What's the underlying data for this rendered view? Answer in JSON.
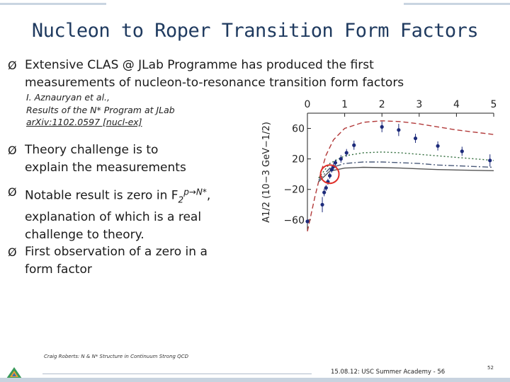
{
  "slide": {
    "title": "Nucleon to Roper Transition Form Factors",
    "bullet1": "Extensive CLAS @ JLab Programme has produced the first measurements of nucleon-to-resonance transition form factors",
    "ref_line1": "I. Aznauryan et al.,",
    "ref_line2": "Results of the N* Program at JLab",
    "ref_link": "arXiv:1102.0597 [nucl-ex]",
    "bullet2": "Theory challenge is to explain the measurements",
    "bullet3_pre": "Notable result is zero in F",
    "bullet3_sub": "2",
    "bullet3_sup": "p→N*",
    "bullet3_post": ", explanation of which is a real challenge to theory.",
    "bullet4": "First observation of a zero in a form factor",
    "footer_left": "Craig Roberts: N & N* Structure in Continuum Strong QCD",
    "footer_date": "15.08.12: USC Summer Academy - 56",
    "page_number": "52",
    "bullet_symbol": "Ø"
  },
  "chart_data": {
    "type": "scatter",
    "xlim": [
      0,
      5
    ],
    "ylim": [
      -75,
      80
    ],
    "x_ticks": [
      "0",
      "1",
      "2",
      "3",
      "4",
      "5"
    ],
    "y_ticks": [
      "60",
      "20",
      "−20",
      "−60"
    ],
    "y_tick_values": [
      60,
      20,
      -20,
      -60
    ],
    "ylabel": "A1/2 (10−3 GeV−1/2)",
    "points": [
      {
        "x": 0.0,
        "y": -62,
        "err": 3
      },
      {
        "x": 0.4,
        "y": -40,
        "err": 10
      },
      {
        "x": 0.45,
        "y": -24,
        "err": 5
      },
      {
        "x": 0.5,
        "y": -18,
        "err": 4
      },
      {
        "x": 0.55,
        "y": -10,
        "err": 4
      },
      {
        "x": 0.6,
        "y": -2,
        "err": 4
      },
      {
        "x": 0.65,
        "y": 6,
        "err": 4
      },
      {
        "x": 0.7,
        "y": 10,
        "err": 4
      },
      {
        "x": 0.75,
        "y": 15,
        "err": 4
      },
      {
        "x": 0.9,
        "y": 20,
        "err": 5
      },
      {
        "x": 1.05,
        "y": 28,
        "err": 5
      },
      {
        "x": 1.25,
        "y": 38,
        "err": 6
      },
      {
        "x": 2.0,
        "y": 62,
        "err": 7
      },
      {
        "x": 2.45,
        "y": 58,
        "err": 8
      },
      {
        "x": 2.9,
        "y": 47,
        "err": 6
      },
      {
        "x": 3.5,
        "y": 37,
        "err": 6
      },
      {
        "x": 4.15,
        "y": 30,
        "err": 6
      },
      {
        "x": 4.9,
        "y": 18,
        "err": 8
      }
    ],
    "curves": [
      {
        "style": "dashed",
        "color": "#b23a3a",
        "points": [
          [
            0.0,
            -75
          ],
          [
            0.2,
            -30
          ],
          [
            0.35,
            0
          ],
          [
            0.5,
            25
          ],
          [
            0.7,
            45
          ],
          [
            1.0,
            60
          ],
          [
            1.5,
            68
          ],
          [
            2.0,
            70
          ],
          [
            2.5,
            69
          ],
          [
            3.0,
            66
          ],
          [
            3.5,
            62
          ],
          [
            4.0,
            58
          ],
          [
            4.5,
            55
          ],
          [
            5.0,
            52
          ]
        ]
      },
      {
        "style": "dotted",
        "color": "#2f6b3a",
        "points": [
          [
            0.3,
            -5
          ],
          [
            0.6,
            14
          ],
          [
            1.0,
            24
          ],
          [
            1.5,
            28
          ],
          [
            2.0,
            29
          ],
          [
            2.5,
            28
          ],
          [
            3.0,
            26
          ],
          [
            3.5,
            24
          ],
          [
            4.0,
            22
          ],
          [
            4.5,
            20
          ],
          [
            5.0,
            18
          ]
        ]
      },
      {
        "style": "dashdot",
        "color": "#4a5a7a",
        "points": [
          [
            0.3,
            -8
          ],
          [
            0.6,
            8
          ],
          [
            1.0,
            14
          ],
          [
            1.5,
            16
          ],
          [
            2.0,
            16
          ],
          [
            2.5,
            15
          ],
          [
            3.0,
            14
          ],
          [
            3.5,
            12
          ],
          [
            4.0,
            11
          ],
          [
            4.5,
            10
          ],
          [
            5.0,
            9
          ]
        ]
      },
      {
        "style": "solid",
        "color": "#555555",
        "points": [
          [
            0.3,
            -10
          ],
          [
            0.6,
            4
          ],
          [
            1.0,
            8
          ],
          [
            1.5,
            9
          ],
          [
            2.0,
            8.5
          ],
          [
            2.5,
            8
          ],
          [
            3.0,
            7
          ],
          [
            3.5,
            6
          ],
          [
            4.0,
            5.5
          ],
          [
            4.5,
            5
          ],
          [
            5.0,
            4.5
          ]
        ]
      }
    ],
    "highlight": {
      "x": 0.6,
      "y": 0,
      "color": "#e0302a"
    },
    "colors": {
      "points": "#1c2a7a",
      "axis": "#222222"
    }
  }
}
